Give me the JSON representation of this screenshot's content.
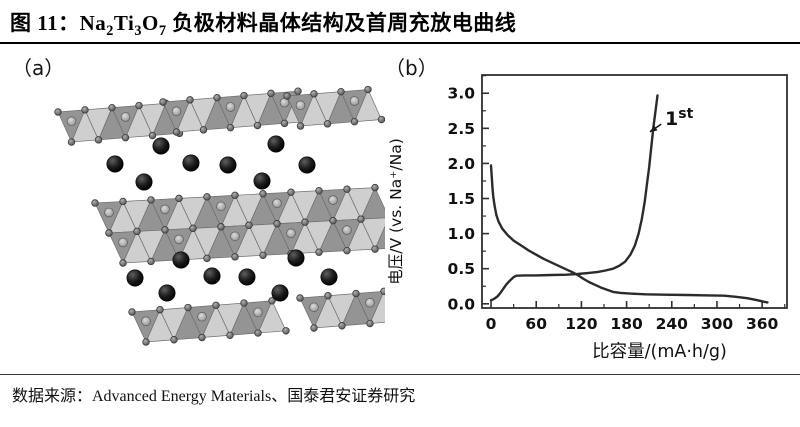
{
  "header": {
    "title_prefix": "图 11：",
    "formula": [
      {
        "el": "Na",
        "sub": "2"
      },
      {
        "el": "Ti",
        "sub": "3"
      },
      {
        "el": "O",
        "sub": "7"
      }
    ],
    "title_suffix": " 负极材料晶体结构及首周充放电曲线"
  },
  "panels": {
    "a_label": "（a）",
    "b_label": "（b）"
  },
  "footer": {
    "source_text": "数据来源：Advanced Energy Materials、国泰君安证券研究"
  },
  "colors": {
    "curve": "#2b2b2b",
    "axis": "#2f2f2f",
    "na_atom": "#0d0d0d",
    "polyhedron_light": "#cfcfcf",
    "polyhedron_dark": "#949494"
  },
  "chart_data": {
    "type": "line",
    "title": "",
    "xlabel": "比容量/(mA·h/g)",
    "ylabel": "电压/V (vs. Na⁺/Na)",
    "xlim": [
      -12,
      393
    ],
    "ylim": [
      -0.06,
      3.26
    ],
    "xticks": [
      "0",
      "60",
      "120",
      "180",
      "240",
      "300",
      "360"
    ],
    "yticks": [
      "0.0",
      "0.5",
      "1.0",
      "1.5",
      "2.0",
      "2.5",
      "3.0"
    ],
    "minor_xtick_step": 30,
    "minor_ytick_step": 0.25,
    "grid": false,
    "legend_position": "none",
    "annotation": {
      "base": "1",
      "sup": "st",
      "text_x": 231,
      "text_y": 2.55,
      "arrow_from_x": 226,
      "arrow_from_y": 2.56,
      "arrow_to_x": 211,
      "arrow_to_y": 2.45
    },
    "series": [
      {
        "name": "1st discharge",
        "points": [
          [
            0,
            1.97
          ],
          [
            1,
            1.8
          ],
          [
            2,
            1.65
          ],
          [
            3,
            1.52
          ],
          [
            5,
            1.38
          ],
          [
            7,
            1.27
          ],
          [
            10,
            1.17
          ],
          [
            15,
            1.07
          ],
          [
            22,
            0.98
          ],
          [
            30,
            0.9
          ],
          [
            40,
            0.83
          ],
          [
            50,
            0.76
          ],
          [
            60,
            0.7
          ],
          [
            70,
            0.64
          ],
          [
            80,
            0.59
          ],
          [
            90,
            0.54
          ],
          [
            100,
            0.49
          ],
          [
            108,
            0.45
          ],
          [
            115,
            0.41
          ],
          [
            122,
            0.36
          ],
          [
            130,
            0.31
          ],
          [
            138,
            0.27
          ],
          [
            146,
            0.23
          ],
          [
            154,
            0.2
          ],
          [
            162,
            0.17
          ],
          [
            172,
            0.155
          ],
          [
            185,
            0.145
          ],
          [
            205,
            0.135
          ],
          [
            230,
            0.13
          ],
          [
            260,
            0.125
          ],
          [
            290,
            0.12
          ],
          [
            310,
            0.115
          ],
          [
            325,
            0.1
          ],
          [
            340,
            0.08
          ],
          [
            352,
            0.055
          ],
          [
            362,
            0.03
          ],
          [
            367,
            0.02
          ]
        ]
      },
      {
        "name": "1st charge",
        "points": [
          [
            0,
            0.05
          ],
          [
            4,
            0.07
          ],
          [
            8,
            0.1
          ],
          [
            12,
            0.15
          ],
          [
            16,
            0.21
          ],
          [
            20,
            0.27
          ],
          [
            25,
            0.33
          ],
          [
            30,
            0.38
          ],
          [
            34,
            0.4
          ],
          [
            45,
            0.405
          ],
          [
            60,
            0.405
          ],
          [
            80,
            0.41
          ],
          [
            100,
            0.415
          ],
          [
            115,
            0.425
          ],
          [
            130,
            0.44
          ],
          [
            142,
            0.455
          ],
          [
            152,
            0.475
          ],
          [
            162,
            0.5
          ],
          [
            170,
            0.54
          ],
          [
            178,
            0.6
          ],
          [
            185,
            0.7
          ],
          [
            191,
            0.83
          ],
          [
            196,
            1.0
          ],
          [
            200,
            1.2
          ],
          [
            204,
            1.45
          ],
          [
            207,
            1.7
          ],
          [
            210,
            1.95
          ],
          [
            213,
            2.25
          ],
          [
            216,
            2.55
          ],
          [
            219,
            2.8
          ],
          [
            221,
            2.97
          ]
        ]
      }
    ]
  }
}
